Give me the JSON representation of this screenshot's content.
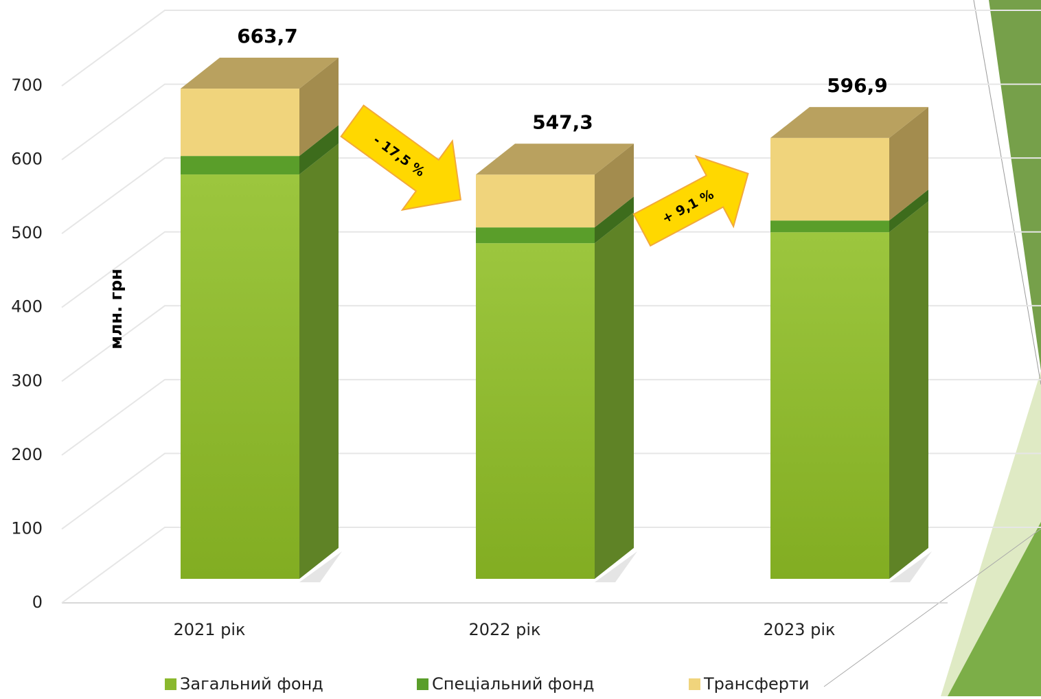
{
  "chart_data": {
    "type": "stacked_bar_3d",
    "y_label": "млн. грн",
    "categories": [
      "2021 рік",
      "2022 рік",
      "2023 рік"
    ],
    "series": [
      {
        "name": "Загальний фонд",
        "color": "#8ab82e",
        "values": [
          547.5,
          454.4,
          469.3
        ]
      },
      {
        "name": "Спеціальний фонд",
        "color": "#5a9e2a",
        "values": [
          25.0,
          21.4,
          15.8
        ]
      },
      {
        "name": "Трансферти",
        "color": "#f0d47c",
        "values": [
          91.2,
          71.5,
          111.8
        ]
      }
    ],
    "totals": [
      663.7,
      547.3,
      596.9
    ],
    "total_labels": [
      "663,7",
      "547,3",
      "596,9"
    ],
    "annotations": [
      "- 17,5 %",
      "+ 9,1 %"
    ],
    "ylim": [
      0,
      700
    ],
    "yticks": [
      0,
      100,
      200,
      300,
      400,
      500,
      600,
      700
    ],
    "grid": true
  }
}
